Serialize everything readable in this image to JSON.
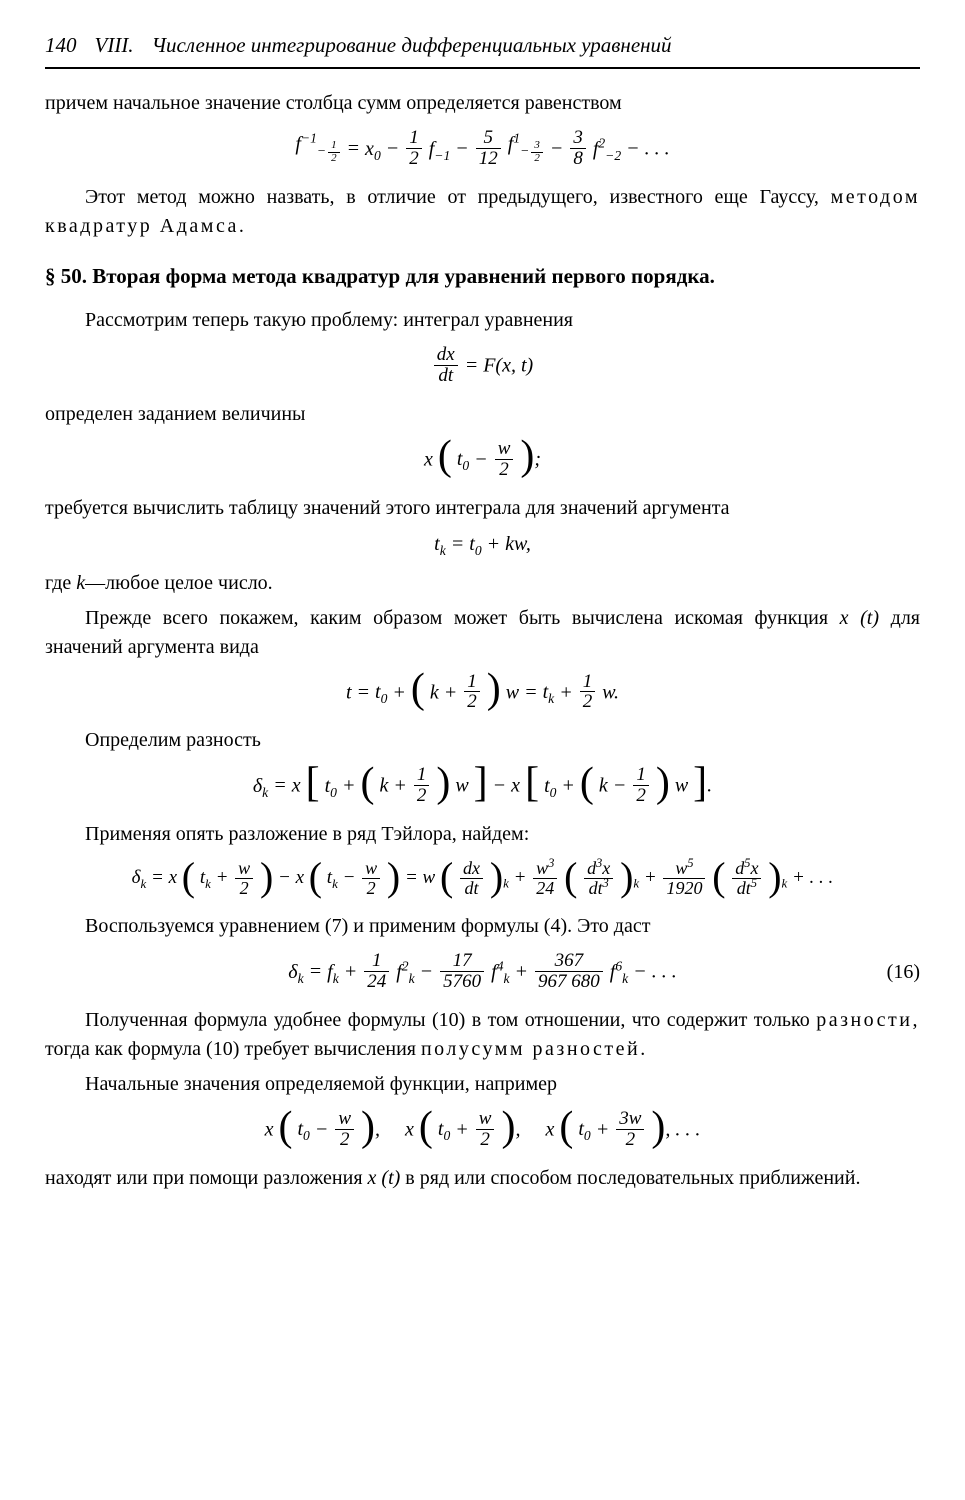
{
  "header": {
    "page": "140",
    "chapter_num": "VIII.",
    "chapter_title": "Численное интегрирование дифференциальных уравнений"
  },
  "para1": "причем начальное значение столбца сумм определяется равенством",
  "formula1": {
    "lhs_base": "f",
    "lhs_sup": "−1",
    "lhs_sub_whole": "−",
    "lhs_sub_num": "1",
    "lhs_sub_den": "2",
    "eq": " = ",
    "t1": "x",
    "t1_sub": "0",
    "minus": " − ",
    "c2_num": "1",
    "c2_den": "2",
    "f2": " f",
    "f2_sub": "−1",
    "c3_num": "5",
    "c3_den": "12",
    "f3_base": "f",
    "f3_sup": "1",
    "f3_sub_whole": "−",
    "f3_sub_num": "3",
    "f3_sub_den": "2",
    "c4_num": "3",
    "c4_den": "8",
    "f4_base": "f",
    "f4_sup": "2",
    "f4_sub": "−2",
    "dots": " − . . ."
  },
  "para2_a": "Этот метод можно назвать, в отличие от предыдущего, известного еще Гауссу, ",
  "para2_b": "методом квадратур Адамса.",
  "section": {
    "marker": "§ 50. ",
    "title": "Вторая форма метода квадратур для уравнений первого порядка."
  },
  "para3": "Рассмотрим теперь такую проблему: интеграл уравнения",
  "formula2": {
    "num": "dx",
    "den": "dt",
    "eq": " = ",
    "rhs": "F(x, t)"
  },
  "para4": "определен заданием величины",
  "formula3": {
    "x": "x",
    "t0": "t",
    "t0sub": "0",
    "minus": " − ",
    "wnum": "w",
    "wden": "2",
    "semi": ";"
  },
  "para5": "требуется вычислить таблицу значений этого интеграла для значений аргумента",
  "formula4": {
    "lhs": "t",
    "lhs_sub": "k",
    "eq": " = ",
    "t0": "t",
    "t0_sub": "0",
    "plus": " + ",
    "kw": "kw,"
  },
  "para6a": "где ",
  "para6b": "k",
  "para6c": "—любое целое число.",
  "para7a": "Прежде всего покажем, каким образом может быть вычислена искомая функция ",
  "para7b": "x (t)",
  "para7c": " для значений аргумента вида",
  "formula5": {
    "t": "t",
    "eq": " = ",
    "t0": "t",
    "t0sub": "0",
    "plus": " + ",
    "k": "k",
    "half_num": "1",
    "half_den": "2",
    "w": " w",
    "eq2": " = ",
    "tk": "t",
    "tksub": "k",
    "plus2": " + ",
    "w2": " w."
  },
  "para8": "Определим разность",
  "formula6": {
    "delta": "δ",
    "deltasub": "k",
    "eq": " = ",
    "x": "x",
    "t0": "t",
    "t0sub": "0",
    "plus": " + ",
    "k": "k",
    "half_num": "1",
    "half_den": "2",
    "w": " w",
    "minus": " − ",
    "x2": "x",
    "minus2": " − ",
    "period": "."
  },
  "para9": "Применяя опять разложение в ряд Тэйлора, найдем:",
  "formula7": {
    "delta": "δ",
    "deltasub": "k",
    "eq": " = ",
    "x": "x",
    "tk": "t",
    "tksub": "k",
    "plus": " + ",
    "wnum": "w",
    "wden": "2",
    "minus": " − ",
    "eq2": " = ",
    "w": "w",
    "d1num": "dx",
    "d1den": "dt",
    "c2num": "w",
    "c2sup": "3",
    "c2den": "24",
    "d2num_d": "d",
    "d2num_sup": "3",
    "d2num_x": "x",
    "d2den_d": "dt",
    "d2den_sup": "3",
    "c3num": "w",
    "c3sup": "5",
    "c3den": "1920",
    "d3num_sup": "5",
    "d3den_sup": "5",
    "dots": " + . . ."
  },
  "para10": "Воспользуемся уравнением (7) и применим формулы (4). Это даст",
  "formula8": {
    "delta": "δ",
    "deltasub": "k",
    "eq": " = ",
    "f": "f",
    "fsub": "k",
    "plus": " + ",
    "c1num": "1",
    "c1den": "24",
    "f2": "f",
    "f2sub": "k",
    "f2sup": "2",
    "minus": " − ",
    "c2num": "17",
    "c2den": "5760",
    "f3": "f",
    "f3sub": "k",
    "f3sup": "4",
    "c3num": "367",
    "c3den": "967 680",
    "f4": "f",
    "f4sub": "k",
    "f4sup": "6",
    "dots": " − . . .",
    "eqnum": "(16)"
  },
  "para11a": "Полученная формула удобнее формулы (10) в том отношении, что содержит только ",
  "para11b": "разности,",
  "para11c": " тогда как формула (10) требует вычисления ",
  "para11d": "полусумм разностей.",
  "para12": "Начальные значения определяемой функции, например",
  "formula9": {
    "x": "x",
    "t0": "t",
    "t0sub": "0",
    "minus": " − ",
    "wnum": "w",
    "wden": "2",
    "plus": " + ",
    "w3num": "3w",
    "comma": ",",
    "dots": ", . . ."
  },
  "para13a": "находят или при помощи разложения ",
  "para13b": "x (t)",
  "para13c": " в ряд или способом последовательных приближений."
}
